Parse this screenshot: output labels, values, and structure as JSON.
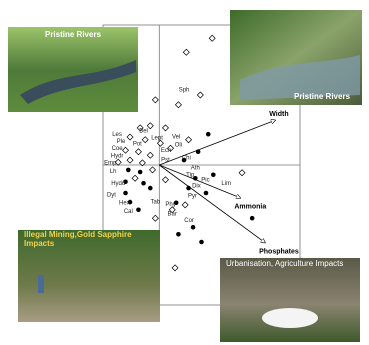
{
  "photos": [
    {
      "caption": "Pristine Rivers"
    },
    {
      "caption": "Pristine Rivers"
    },
    {
      "caption": "Illegal Mining,Gold Sapphire Impacts"
    },
    {
      "caption": "Urbanisation, Agriculture Impacts"
    }
  ],
  "chart_data": {
    "type": "scatter",
    "xlim": [
      -1,
      2.5
    ],
    "ylim": [
      -2,
      2
    ],
    "series": [
      {
        "marker": "open-diamond",
        "color": "#000000",
        "x": [
          0.94,
          0.48,
          0.73,
          -0.07,
          0.34,
          -0.16,
          -0.34,
          0.11,
          -0.52,
          -0.25,
          0.02,
          0.2,
          -0.6,
          -0.37,
          -0.16,
          -0.52,
          -0.3,
          -0.73,
          -0.12,
          -0.43,
          0.11,
          1.47,
          0.46,
          0.23,
          -0.07,
          0.28,
          0.52
        ],
        "values": [
          1.81,
          1.61,
          1.0,
          0.93,
          0.86,
          0.56,
          0.53,
          0.53,
          0.4,
          0.36,
          0.31,
          0.24,
          0.21,
          0.19,
          0.14,
          0.07,
          0.03,
          0.04,
          -0.07,
          -0.19,
          -0.21,
          -0.11,
          -0.57,
          -0.64,
          -0.76,
          -1.47,
          0.36
        ]
      },
      {
        "marker": "filled-circle",
        "color": "#000000",
        "x": [
          0.87,
          0.69,
          0.44,
          0.96,
          0.64,
          0.52,
          0.83,
          0.3,
          0.6,
          0.75,
          0.34,
          1.65,
          -0.55,
          -0.6,
          -0.6,
          -0.52,
          -0.28,
          -0.16,
          -0.34,
          -0.37
        ],
        "values": [
          0.44,
          0.19,
          0.07,
          -0.14,
          -0.19,
          -0.33,
          -0.4,
          -0.54,
          -0.89,
          -1.1,
          -0.99,
          -0.76,
          -0.07,
          -0.24,
          -0.4,
          -0.53,
          -0.26,
          -0.33,
          -0.1,
          -0.64
        ]
      }
    ],
    "point_labels": {
      "labels": [
        "Sph",
        "Vel",
        "Oli",
        "Ecn",
        "Chi",
        "Les",
        "Ple",
        "Bel",
        "Lept",
        "Coe",
        "Pot",
        "Hydr",
        "Emp",
        "Lh",
        "Pst",
        "Ath",
        "Tip",
        "Pic",
        "Dix",
        "Lim",
        "Hydu",
        "Dyt",
        "Hex",
        "Cal",
        "Tab",
        "Phy",
        "Pyr",
        "Bar",
        "Cor"
      ],
      "x": [
        0.44,
        0.3,
        0.34,
        0.12,
        0.48,
        -0.75,
        -0.68,
        -0.28,
        -0.04,
        -0.75,
        -0.39,
        -0.75,
        -0.87,
        -0.82,
        0.11,
        0.64,
        0.55,
        0.82,
        0.66,
        1.19,
        -0.73,
        -0.85,
        -0.62,
        -0.55,
        -0.07,
        0.2,
        0.59,
        0.23,
        0.53
      ],
      "values": [
        1.07,
        0.4,
        0.29,
        0.21,
        0.1,
        0.44,
        0.34,
        0.49,
        0.39,
        0.24,
        0.3,
        0.13,
        0.03,
        -0.09,
        0.07,
        -0.04,
        -0.14,
        -0.21,
        -0.3,
        -0.26,
        -0.26,
        -0.43,
        -0.54,
        -0.66,
        -0.53,
        -0.56,
        -0.44,
        -0.7,
        -0.79
      ]
    },
    "vectors": {
      "labels": [
        "Width",
        "Ammonia",
        "Phosphates"
      ],
      "x": [
        2.06,
        1.44,
        1.88
      ],
      "values": [
        0.64,
        -0.47,
        -1.11
      ]
    }
  }
}
